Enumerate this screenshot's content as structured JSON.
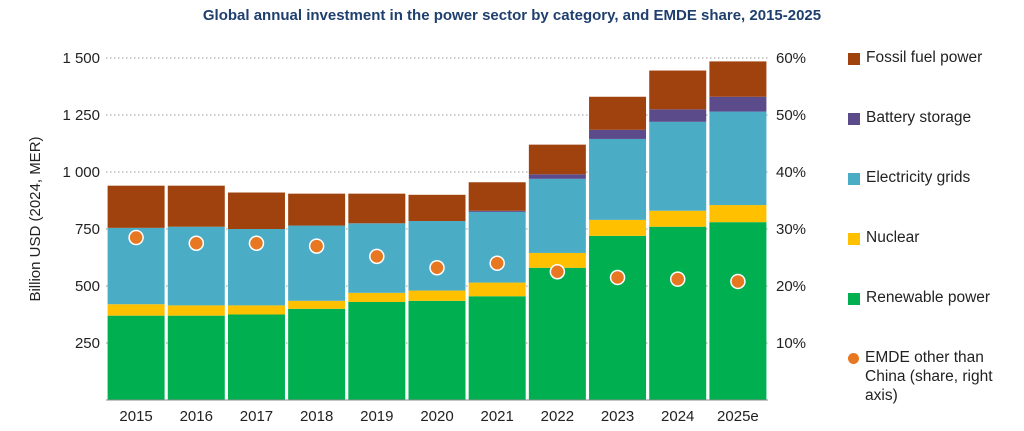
{
  "chart_data": {
    "type": "bar",
    "stacked": true,
    "title": "Global annual investment in the power sector by category, and EMDE share, 2015-2025",
    "ylabel": "Billion USD (2024, MER)",
    "ylim": [
      0,
      1500
    ],
    "yticks": [
      "250",
      "500",
      "750",
      "1 000",
      "1 250",
      "1 500"
    ],
    "y2lim": [
      0,
      60
    ],
    "y2ticks": [
      "10%",
      "20%",
      "30%",
      "40%",
      "50%",
      "60%"
    ],
    "grid": "horizontal dotted",
    "legend_position": "right",
    "categories": [
      "2015",
      "2016",
      "2017",
      "2018",
      "2019",
      "2020",
      "2021",
      "2022",
      "2023",
      "2024",
      "2025e"
    ],
    "series": [
      {
        "name": "Renewable power",
        "color": "#00b050",
        "values": [
          370,
          370,
          375,
          400,
          430,
          435,
          455,
          580,
          720,
          760,
          780
        ]
      },
      {
        "name": "Nuclear",
        "color": "#ffc000",
        "values": [
          50,
          45,
          40,
          35,
          40,
          45,
          60,
          65,
          70,
          70,
          75
        ]
      },
      {
        "name": "Electricity grids",
        "color": "#4bacc6",
        "values": [
          335,
          345,
          335,
          330,
          305,
          305,
          310,
          325,
          355,
          390,
          410
        ]
      },
      {
        "name": "Battery storage",
        "color": "#5c4b8a",
        "values": [
          0,
          0,
          0,
          0,
          0,
          0,
          5,
          20,
          40,
          55,
          65
        ]
      },
      {
        "name": "Fossil fuel power",
        "color": "#a0420e",
        "values": [
          185,
          180,
          160,
          140,
          130,
          115,
          125,
          130,
          145,
          170,
          155
        ]
      }
    ],
    "line_series": {
      "name": "EMDE other than China (share, right axis)",
      "color": "#e87722",
      "axis": "right",
      "values": [
        28.5,
        27.5,
        27.5,
        27,
        25.2,
        23.2,
        24,
        22.5,
        21.5,
        21.2,
        20.8
      ]
    }
  },
  "legend": [
    {
      "label": "Fossil fuel power",
      "color": "#a0420e",
      "marker": "square"
    },
    {
      "label": "Battery storage",
      "color": "#5c4b8a",
      "marker": "square"
    },
    {
      "label": "Electricity grids",
      "color": "#4bacc6",
      "marker": "square"
    },
    {
      "label": "Nuclear",
      "color": "#ffc000",
      "marker": "square"
    },
    {
      "label": "Renewable power",
      "color": "#00b050",
      "marker": "square"
    },
    {
      "label": "EMDE other than China (share, right axis)",
      "color": "#e87722",
      "marker": "dot"
    }
  ]
}
